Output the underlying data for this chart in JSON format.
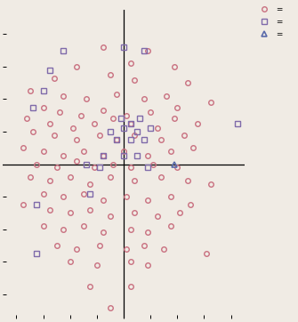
{
  "background_color": "#f0ebe4",
  "circle_color": "#c97080",
  "square_color": "#7f6aaa",
  "triangle_color": "#5a6aaa",
  "circle_marker": "o",
  "square_marker": "s",
  "triangle_marker": "^",
  "marker_size_circle": 4.0,
  "marker_size_square": 4.5,
  "marker_size_triangle": 5.0,
  "marker_edge_width": 1.0,
  "xlim": [
    -9,
    9
  ],
  "ylim": [
    -9.5,
    9.5
  ],
  "xticks": [
    -8,
    -6,
    -4,
    -2,
    0,
    2,
    4,
    6,
    8
  ],
  "yticks": [
    -8,
    -6,
    -4,
    -2,
    0,
    2,
    4,
    6,
    8
  ],
  "circles": [
    [
      -1.5,
      7.2
    ],
    [
      1.8,
      7.0
    ],
    [
      -3.5,
      6.0
    ],
    [
      0.5,
      6.2
    ],
    [
      3.8,
      6.0
    ],
    [
      -5.2,
      5.3
    ],
    [
      -1.0,
      5.5
    ],
    [
      0.8,
      5.2
    ],
    [
      4.8,
      5.0
    ],
    [
      -7.0,
      4.5
    ],
    [
      -4.5,
      4.2
    ],
    [
      -2.8,
      4.0
    ],
    [
      -0.5,
      4.3
    ],
    [
      1.5,
      4.0
    ],
    [
      3.2,
      4.2
    ],
    [
      6.5,
      3.8
    ],
    [
      -6.0,
      3.5
    ],
    [
      -4.8,
      3.2
    ],
    [
      -3.2,
      3.0
    ],
    [
      -1.5,
      3.3
    ],
    [
      0.2,
      3.0
    ],
    [
      2.0,
      3.2
    ],
    [
      4.0,
      3.5
    ],
    [
      -7.2,
      2.8
    ],
    [
      -5.5,
      2.5
    ],
    [
      -3.8,
      2.2
    ],
    [
      -2.2,
      2.5
    ],
    [
      -0.8,
      2.8
    ],
    [
      0.5,
      2.5
    ],
    [
      2.5,
      2.2
    ],
    [
      3.8,
      2.8
    ],
    [
      5.5,
      2.5
    ],
    [
      -6.8,
      2.0
    ],
    [
      -5.2,
      1.8
    ],
    [
      -3.5,
      1.5
    ],
    [
      -1.8,
      1.8
    ],
    [
      -0.5,
      1.5
    ],
    [
      0.8,
      1.8
    ],
    [
      2.8,
      1.5
    ],
    [
      4.5,
      1.8
    ],
    [
      -7.5,
      1.0
    ],
    [
      -6.0,
      0.8
    ],
    [
      -4.5,
      0.5
    ],
    [
      -3.0,
      0.8
    ],
    [
      -1.5,
      0.5
    ],
    [
      0.0,
      0.8
    ],
    [
      1.8,
      0.5
    ],
    [
      3.5,
      0.8
    ],
    [
      5.2,
      1.0
    ],
    [
      -6.5,
      0.0
    ],
    [
      -5.0,
      -0.2
    ],
    [
      -3.5,
      0.2
    ],
    [
      -2.2,
      -0.2
    ],
    [
      -0.8,
      0.0
    ],
    [
      0.5,
      -0.2
    ],
    [
      2.2,
      0.0
    ],
    [
      4.0,
      -0.2
    ],
    [
      -7.0,
      -0.8
    ],
    [
      -5.5,
      -1.0
    ],
    [
      -4.0,
      -0.8
    ],
    [
      -2.5,
      -1.2
    ],
    [
      -1.0,
      -0.8
    ],
    [
      0.8,
      -1.0
    ],
    [
      2.8,
      -0.8
    ],
    [
      4.8,
      -1.0
    ],
    [
      6.5,
      -1.2
    ],
    [
      -6.0,
      -1.8
    ],
    [
      -4.5,
      -2.0
    ],
    [
      -3.0,
      -1.8
    ],
    [
      -1.5,
      -2.2
    ],
    [
      0.2,
      -2.0
    ],
    [
      1.8,
      -2.2
    ],
    [
      3.5,
      -2.0
    ],
    [
      5.0,
      -2.5
    ],
    [
      -7.5,
      -2.5
    ],
    [
      -5.5,
      -2.8
    ],
    [
      -4.0,
      -3.0
    ],
    [
      -2.5,
      -2.8
    ],
    [
      -1.0,
      -3.2
    ],
    [
      0.8,
      -3.0
    ],
    [
      2.5,
      -3.2
    ],
    [
      4.2,
      -3.0
    ],
    [
      -6.0,
      -3.8
    ],
    [
      -4.5,
      -4.0
    ],
    [
      -3.0,
      -3.8
    ],
    [
      -1.5,
      -4.2
    ],
    [
      0.5,
      -4.0
    ],
    [
      1.8,
      -4.2
    ],
    [
      3.5,
      -3.8
    ],
    [
      -5.0,
      -5.0
    ],
    [
      -3.5,
      -5.2
    ],
    [
      -1.8,
      -5.0
    ],
    [
      0.2,
      -5.2
    ],
    [
      1.5,
      -5.0
    ],
    [
      3.0,
      -5.2
    ],
    [
      6.2,
      -5.5
    ],
    [
      -4.0,
      -6.0
    ],
    [
      -2.0,
      -6.2
    ],
    [
      0.5,
      -6.0
    ],
    [
      1.8,
      -6.2
    ],
    [
      -2.5,
      -7.5
    ],
    [
      0.5,
      -7.5
    ],
    [
      -1.0,
      -8.8
    ]
  ],
  "squares": [
    [
      -4.5,
      7.0
    ],
    [
      0.0,
      7.2
    ],
    [
      1.5,
      7.0
    ],
    [
      -5.5,
      5.8
    ],
    [
      -6.0,
      4.5
    ],
    [
      -6.8,
      3.5
    ],
    [
      -0.2,
      2.8
    ],
    [
      0.5,
      2.5
    ],
    [
      1.2,
      2.8
    ],
    [
      -1.0,
      2.0
    ],
    [
      0.0,
      2.2
    ],
    [
      1.0,
      2.0
    ],
    [
      2.0,
      2.2
    ],
    [
      -0.5,
      1.5
    ],
    [
      0.5,
      1.5
    ],
    [
      1.5,
      1.5
    ],
    [
      -1.5,
      0.5
    ],
    [
      0.0,
      0.5
    ],
    [
      1.0,
      0.5
    ],
    [
      -2.8,
      0.0
    ],
    [
      -1.8,
      -0.2
    ],
    [
      1.8,
      -0.2
    ],
    [
      -2.5,
      -1.8
    ],
    [
      -6.5,
      -2.5
    ],
    [
      -6.5,
      -5.5
    ],
    [
      8.5,
      2.5
    ]
  ],
  "triangles": [
    [
      3.8,
      0.0
    ]
  ]
}
